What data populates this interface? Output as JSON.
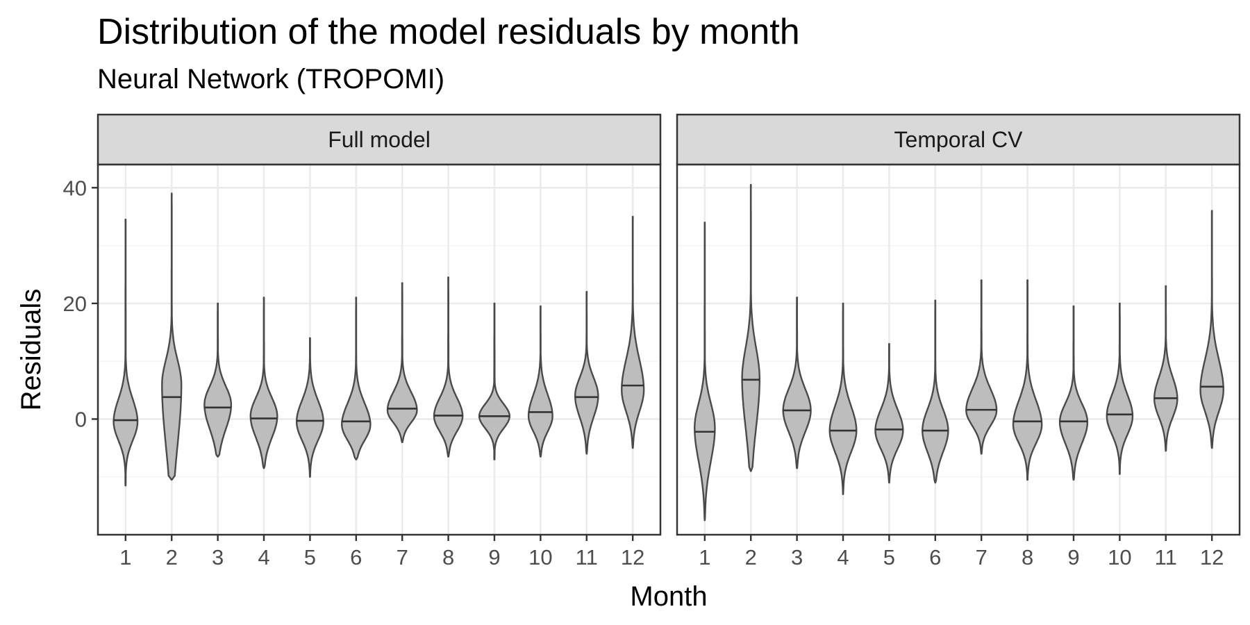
{
  "chart_data": {
    "type": "violin",
    "title": "Distribution of the model residuals by month",
    "subtitle": "Neural Network (TROPOMI)",
    "xlabel": "Month",
    "ylabel": "Residuals",
    "categories": [
      "1",
      "2",
      "3",
      "4",
      "5",
      "6",
      "7",
      "8",
      "9",
      "10",
      "11",
      "12"
    ],
    "y_ticks": [
      0,
      20,
      40
    ],
    "ylim": [
      -20,
      44
    ],
    "grid": true,
    "colors": {
      "violin_fill": "#bdbdbd",
      "violin_stroke": "#4a4a4a",
      "strip_fill": "#d9d9d9",
      "grid": "#ebebeb"
    },
    "panels": [
      {
        "name": "Full model",
        "violins": [
          {
            "month": "1",
            "min": -11.5,
            "max": 34.5,
            "median": -0.2,
            "q1": -3.5,
            "q3": 3.2,
            "peak_y": -0.5,
            "width": 0.52
          },
          {
            "month": "2",
            "min": -10.5,
            "max": 39.0,
            "median": 3.8,
            "q1": -4.0,
            "q3": 10.0,
            "peak_y": 6.0,
            "width": 0.42
          },
          {
            "month": "3",
            "min": -6.5,
            "max": 20.0,
            "median": 2.0,
            "q1": -1.5,
            "q3": 5.5,
            "peak_y": 2.5,
            "width": 0.58
          },
          {
            "month": "4",
            "min": -8.5,
            "max": 21.0,
            "median": 0.1,
            "q1": -3.0,
            "q3": 3.5,
            "peak_y": 0.5,
            "width": 0.58
          },
          {
            "month": "5",
            "min": -10.0,
            "max": 14.0,
            "median": -0.3,
            "q1": -3.5,
            "q3": 3.0,
            "peak_y": -0.5,
            "width": 0.58
          },
          {
            "month": "6",
            "min": -7.0,
            "max": 21.0,
            "median": -0.4,
            "q1": -3.5,
            "q3": 2.5,
            "peak_y": -1.0,
            "width": 0.62
          },
          {
            "month": "7",
            "min": -4.0,
            "max": 23.5,
            "median": 1.8,
            "q1": -0.5,
            "q3": 4.5,
            "peak_y": 1.5,
            "width": 0.64
          },
          {
            "month": "8",
            "min": -6.5,
            "max": 24.5,
            "median": 0.6,
            "q1": -2.0,
            "q3": 3.5,
            "peak_y": 0.5,
            "width": 0.62
          },
          {
            "month": "9",
            "min": -7.0,
            "max": 20.0,
            "median": 0.5,
            "q1": -1.5,
            "q3": 2.5,
            "peak_y": 0.5,
            "width": 0.66
          },
          {
            "month": "10",
            "min": -6.5,
            "max": 19.5,
            "median": 1.2,
            "q1": -2.0,
            "q3": 4.0,
            "peak_y": 0.5,
            "width": 0.52
          },
          {
            "month": "11",
            "min": -6.0,
            "max": 22.0,
            "median": 3.8,
            "q1": 0.5,
            "q3": 7.0,
            "peak_y": 4.0,
            "width": 0.5
          },
          {
            "month": "12",
            "min": -5.0,
            "max": 35.0,
            "median": 5.8,
            "q1": 1.5,
            "q3": 10.0,
            "peak_y": 5.0,
            "width": 0.48
          }
        ]
      },
      {
        "name": "Temporal CV",
        "violins": [
          {
            "month": "1",
            "min": -17.5,
            "max": 34.0,
            "median": -2.2,
            "q1": -7.0,
            "q3": 2.5,
            "peak_y": -1.5,
            "width": 0.44
          },
          {
            "month": "2",
            "min": -9.0,
            "max": 40.5,
            "median": 6.8,
            "q1": -1.0,
            "q3": 12.0,
            "peak_y": 7.0,
            "width": 0.38
          },
          {
            "month": "3",
            "min": -8.5,
            "max": 21.0,
            "median": 1.5,
            "q1": -2.0,
            "q3": 5.0,
            "peak_y": 1.5,
            "width": 0.6
          },
          {
            "month": "4",
            "min": -13.0,
            "max": 20.0,
            "median": -2.0,
            "q1": -5.5,
            "q3": 2.0,
            "peak_y": -2.0,
            "width": 0.58
          },
          {
            "month": "5",
            "min": -11.0,
            "max": 13.0,
            "median": -1.8,
            "q1": -5.0,
            "q3": 1.5,
            "peak_y": -2.0,
            "width": 0.6
          },
          {
            "month": "6",
            "min": -11.0,
            "max": 20.5,
            "median": -2.0,
            "q1": -5.5,
            "q3": 1.5,
            "peak_y": -2.0,
            "width": 0.56
          },
          {
            "month": "7",
            "min": -6.0,
            "max": 24.0,
            "median": 1.6,
            "q1": -1.0,
            "q3": 5.0,
            "peak_y": 1.5,
            "width": 0.66
          },
          {
            "month": "8",
            "min": -10.5,
            "max": 24.0,
            "median": -0.4,
            "q1": -4.0,
            "q3": 3.0,
            "peak_y": -1.0,
            "width": 0.62
          },
          {
            "month": "9",
            "min": -10.5,
            "max": 19.5,
            "median": -0.4,
            "q1": -4.0,
            "q3": 2.5,
            "peak_y": -0.5,
            "width": 0.6
          },
          {
            "month": "10",
            "min": -9.5,
            "max": 20.0,
            "median": 0.8,
            "q1": -2.5,
            "q3": 4.0,
            "peak_y": 0.5,
            "width": 0.56
          },
          {
            "month": "11",
            "min": -5.5,
            "max": 23.0,
            "median": 3.6,
            "q1": 0.5,
            "q3": 7.0,
            "peak_y": 3.5,
            "width": 0.5
          },
          {
            "month": "12",
            "min": -5.0,
            "max": 36.0,
            "median": 5.6,
            "q1": 1.5,
            "q3": 10.0,
            "peak_y": 5.0,
            "width": 0.5
          }
        ]
      }
    ]
  }
}
